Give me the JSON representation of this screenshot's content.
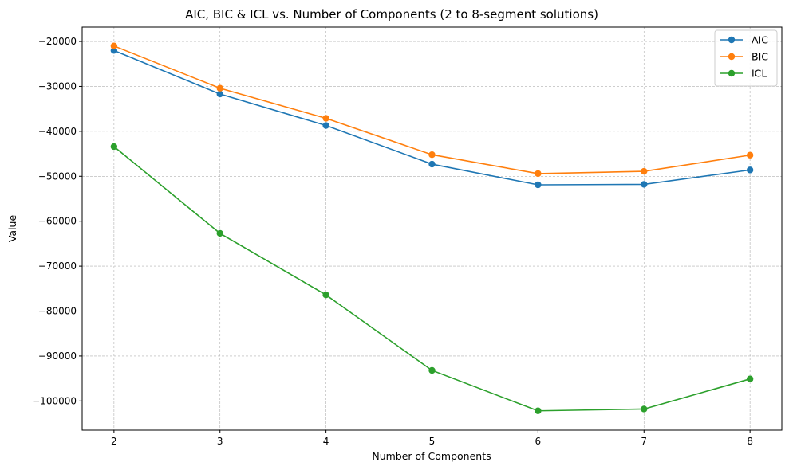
{
  "chart_data": {
    "type": "line",
    "title": "AIC, BIC & ICL vs. Number of Components (2 to 8-segment solutions)",
    "xlabel": "Number of Components",
    "ylabel": "Value",
    "x": [
      2,
      3,
      4,
      5,
      6,
      7,
      8
    ],
    "xticks": [
      "2",
      "3",
      "4",
      "5",
      "6",
      "7",
      "8"
    ],
    "xlim": [
      1.7,
      8.3
    ],
    "ylim": [
      -106500,
      -16800
    ],
    "yticks": [
      -20000,
      -30000,
      -40000,
      -50000,
      -60000,
      -70000,
      -80000,
      -90000,
      -100000
    ],
    "ytick_labels": [
      "−20000",
      "−30000",
      "−40000",
      "−50000",
      "−60000",
      "−70000",
      "−80000",
      "−90000",
      "−100000"
    ],
    "grid": true,
    "legend": "top-right",
    "series": [
      {
        "name": "AIC",
        "color": "#1f77b4",
        "values": [
          -22000,
          -31700,
          -38700,
          -47300,
          -51900,
          -51800,
          -48600
        ]
      },
      {
        "name": "BIC",
        "color": "#ff7f0e",
        "values": [
          -21000,
          -30400,
          -37100,
          -45200,
          -49400,
          -48900,
          -45300
        ]
      },
      {
        "name": "ICL",
        "color": "#2ca02c",
        "values": [
          -43400,
          -62700,
          -76400,
          -93200,
          -102200,
          -101800,
          -95100
        ]
      }
    ]
  }
}
